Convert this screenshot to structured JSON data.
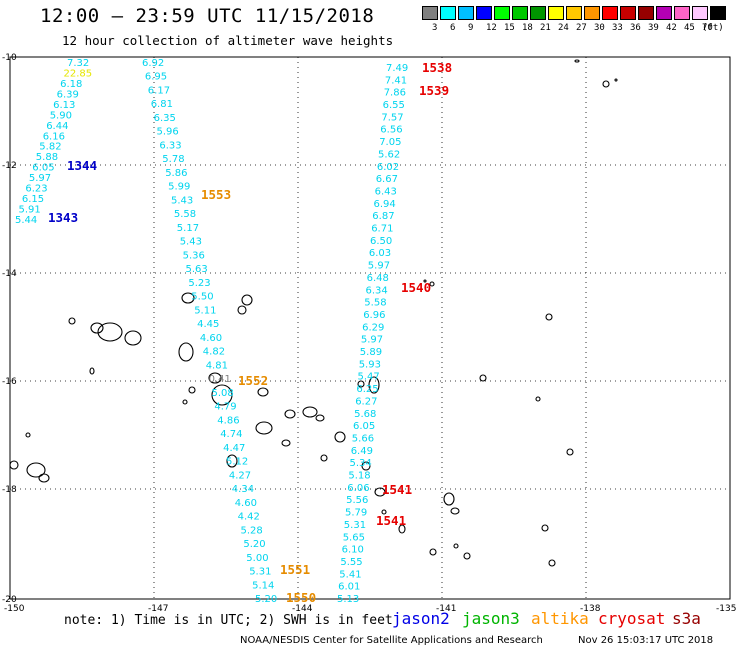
{
  "header": {
    "title": "12:00 — 23:59 UTC 11/15/2018",
    "subtitle": "12 hour collection of altimeter wave heights"
  },
  "legend": {
    "unit": "(ft)",
    "colors": [
      "#808080",
      "#00ffff",
      "#00bfff",
      "#0000ff",
      "#00ff00",
      "#00c800",
      "#009600",
      "#ffff00",
      "#ffc800",
      "#ff9600",
      "#ff0000",
      "#c80000",
      "#960000",
      "#b400b4",
      "#ff64c8",
      "#ffc8ff",
      "#000000"
    ],
    "labels": [
      "3",
      "6",
      "9",
      "12",
      "15",
      "18",
      "21",
      "24",
      "27",
      "30",
      "33",
      "36",
      "39",
      "42",
      "45",
      "70"
    ]
  },
  "axes": {
    "x_ticks": [
      "-150",
      "-147",
      "-144",
      "-141",
      "-138",
      "-135"
    ],
    "y_ticks": [
      "-10",
      "-12",
      "-14",
      "-16",
      "-18",
      "-20"
    ]
  },
  "passes": [
    {
      "id": "1344",
      "sat": "jason2",
      "color": "#0000c8"
    },
    {
      "id": "1343",
      "sat": "jason2",
      "color": "#0000c8"
    },
    {
      "id": "1553",
      "sat": "altika",
      "color": "#e68c00"
    },
    {
      "id": "1552",
      "sat": "altika",
      "color": "#e68c00"
    },
    {
      "id": "1551",
      "sat": "altika",
      "color": "#e68c00"
    },
    {
      "id": "1550",
      "sat": "altika",
      "color": "#e68c00"
    },
    {
      "id": "1538",
      "sat": "cryosat",
      "color": "#e60000"
    },
    {
      "id": "1539",
      "sat": "cryosat",
      "color": "#e60000"
    },
    {
      "id": "1540",
      "sat": "cryosat",
      "color": "#e60000"
    },
    {
      "id": "1541",
      "sat": "cryosat",
      "color": "#e60000"
    },
    {
      "id": "1541",
      "sat": "cryosat",
      "color": "#e60000"
    }
  ],
  "tracks": {
    "track_a": [
      "7.32",
      "22.85",
      "6.18",
      "6.39",
      "6.13",
      "5.90",
      "6.44",
      "6.16",
      "5.82",
      "5.88",
      "6.05",
      "5.97",
      "6.23",
      "6.15",
      "5.91",
      "5.44"
    ],
    "track_b": [
      "6.92",
      "6.95",
      "6.17",
      "6.81",
      "6.35",
      "5.96",
      "6.33",
      "5.78",
      "5.86",
      "5.99",
      "5.43",
      "5.58",
      "5.17",
      "5.43",
      "5.36",
      "5.63",
      "5.23",
      "5.50",
      "5.11",
      "4.45",
      "4.60",
      "4.82",
      "4.81",
      "0.41",
      "5.08",
      "4.79",
      "4.86",
      "4.74",
      "4.47",
      "5.12",
      "4.27",
      "4.34",
      "4.60",
      "4.42",
      "5.28",
      "5.20",
      "5.00",
      "5.31",
      "5.14",
      "5.20"
    ],
    "track_c": [
      "7.49",
      "7.41",
      "7.86",
      "6.55",
      "7.57",
      "6.56",
      "7.05",
      "5.62",
      "6.02",
      "6.67",
      "6.43",
      "6.94",
      "6.87",
      "6.71",
      "6.50",
      "6.03",
      "5.97",
      "6.48",
      "6.34",
      "5.58",
      "6.96",
      "6.29",
      "5.97",
      "5.89",
      "5.93",
      "5.47",
      "6.25",
      "6.27",
      "5.68",
      "6.05",
      "5.66",
      "6.49",
      "5.34",
      "5.18",
      "6.06",
      "5.56",
      "5.79",
      "5.31",
      "5.65",
      "6.10",
      "5.55",
      "5.41",
      "6.01",
      "5.13"
    ]
  },
  "footer": {
    "note": "note: 1) Time is in UTC; 2) SWH is in feet",
    "satellites": [
      {
        "name": "jason2",
        "color": "#0000e6"
      },
      {
        "name": "jason3",
        "color": "#00b400"
      },
      {
        "name": "altika",
        "color": "#ff9600"
      },
      {
        "name": "cryosat",
        "color": "#e60000"
      },
      {
        "name": "s3a",
        "color": "#960000"
      }
    ],
    "credit": "NOAA/NESDIS Center for Satellite Applications and Research",
    "timestamp": "Nov 26 15:03:17 UTC 2018"
  }
}
